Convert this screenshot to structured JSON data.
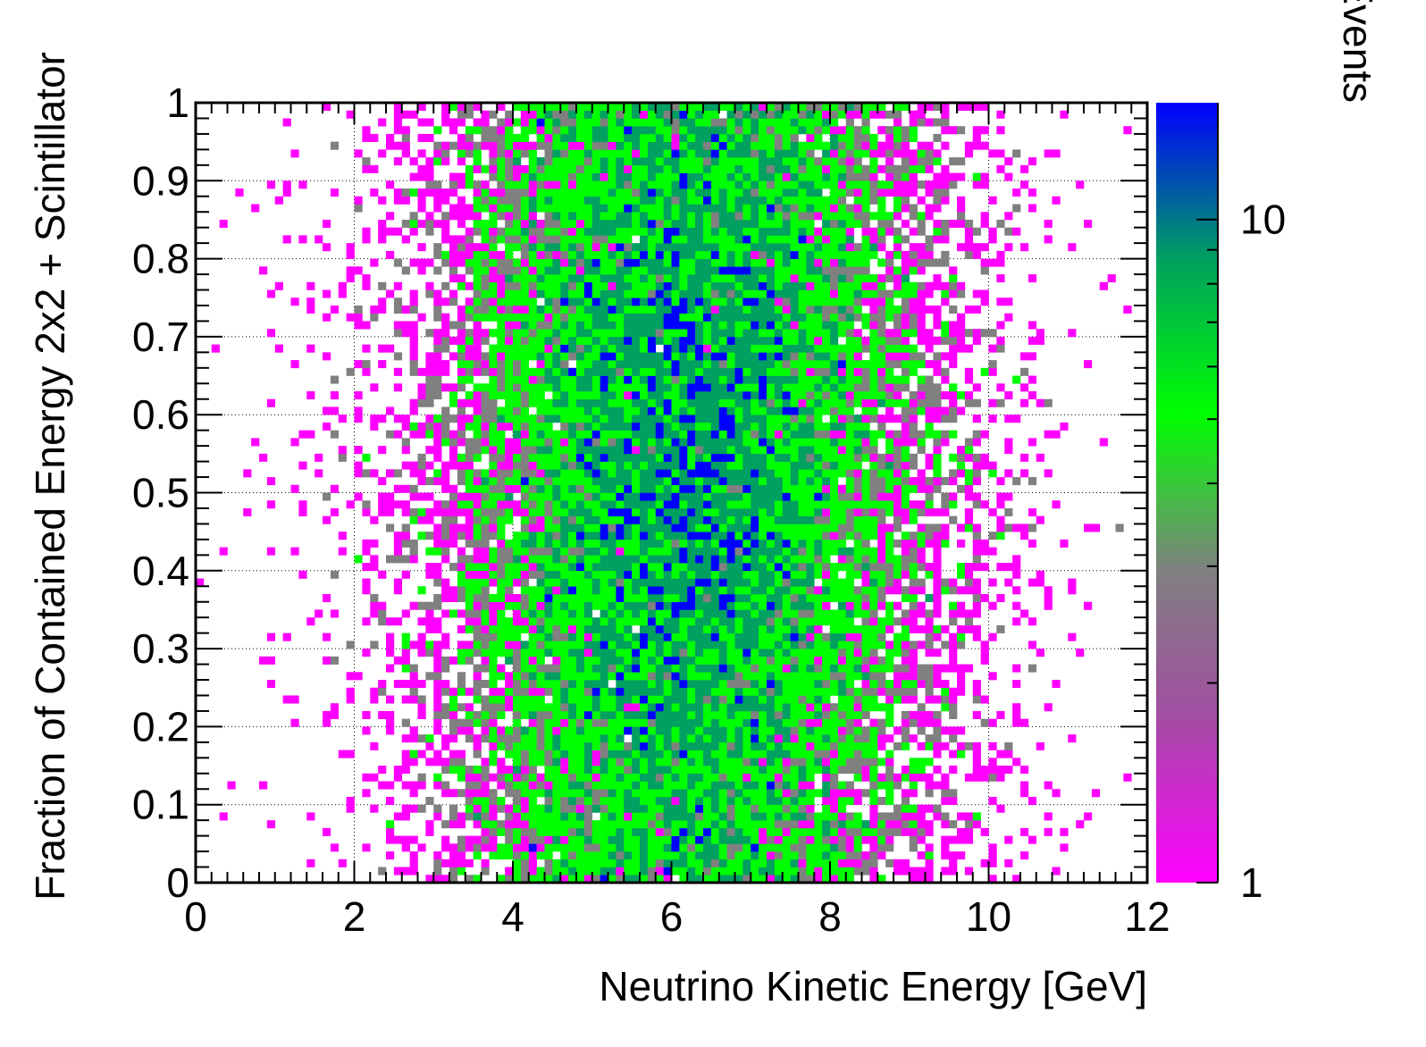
{
  "chart_data": {
    "type": "heatmap",
    "title": "",
    "xlabel": "Neutrino Kinetic Energy [GeV]",
    "ylabel": "Fraction of Contained Energy 2x2 + Scintillator",
    "zlabel": "Number of Events",
    "xlim": [
      0,
      12
    ],
    "ylim": [
      0,
      1
    ],
    "zlim": [
      1,
      15
    ],
    "z_scale": "log",
    "grid": true,
    "x_ticks": [
      "0",
      "2",
      "4",
      "6",
      "8",
      "10",
      "12"
    ],
    "y_ticks": [
      "0",
      "0.1",
      "0.2",
      "0.3",
      "0.4",
      "0.5",
      "0.6",
      "0.7",
      "0.8",
      "0.9",
      "1"
    ],
    "z_ticks": [
      "1",
      "10"
    ],
    "binning": {
      "x_bins": 120,
      "y_bins": 100
    },
    "distribution": {
      "peak_x": 6.2,
      "peak_y": 0.55,
      "x_spread": 1.6,
      "y_spread": 0.3,
      "peak_count": 14
    },
    "colors": {
      "low": "#ff00ff",
      "mid_low": "#808080",
      "mid": "#00ff00",
      "mid_high": "#00a060",
      "high": "#0000ff"
    }
  }
}
